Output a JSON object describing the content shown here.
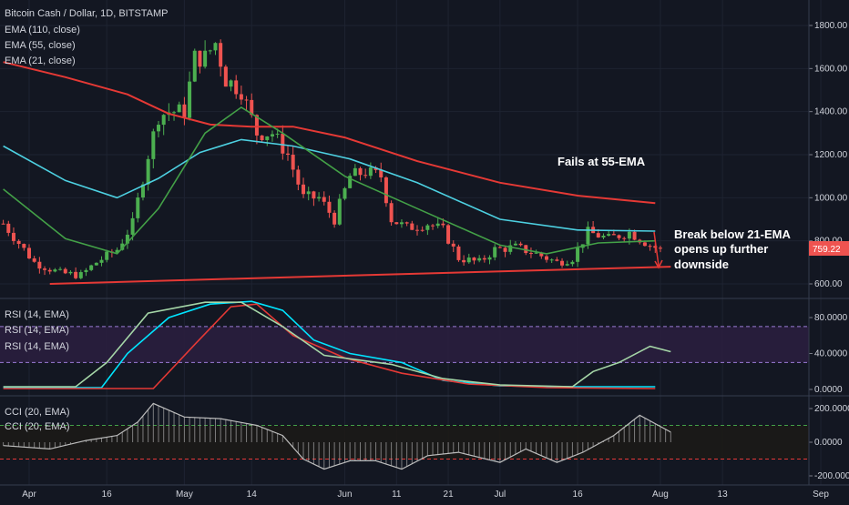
{
  "header": {
    "title": "Bitcoin Cash / Dollar, 1D, BITSTAMP",
    "ema_legends": [
      "EMA (110, close)",
      "EMA (55, close)",
      "EMA (21, close)"
    ]
  },
  "price_tag": "759.22",
  "annotations": {
    "fails": "Fails at 55-EMA",
    "break_lines": [
      "Break below 21-EMA",
      "opens up further",
      "downside"
    ]
  },
  "rsi_legends": [
    "RSI (14, EMA)",
    "RSI (14, EMA)",
    "RSI (14, EMA)"
  ],
  "cci_legends": [
    "CCI (20, EMA)",
    "CCI (20, EMA)"
  ],
  "colors": {
    "background": "#131722",
    "up_candle": "#26a69a",
    "down_candle": "#ef5350",
    "up_candle_bright": "#4caf50",
    "ema110": "#e53935",
    "ema55": "#4dd0e1",
    "ema21": "#43a047",
    "trendline": "#e53935",
    "rsi_band": "#2a1e3e",
    "rsi_line1": "#00e5ff",
    "rsi_line2": "#e53935",
    "rsi_line3": "#a5d6a7",
    "cci_line": "#bdbdbd"
  },
  "chart_data": [
    {
      "type": "candlestick",
      "title": "Bitcoin Cash / Dollar, 1D, BITSTAMP",
      "x_axis": {
        "type": "date",
        "range": [
          "2018-04-01",
          "2018-09-03"
        ],
        "ticks": [
          {
            "date": "2018-04-01",
            "label": "Apr"
          },
          {
            "date": "2018-04-16",
            "label": "16"
          },
          {
            "date": "2018-05-01",
            "label": "May"
          },
          {
            "date": "2018-05-14",
            "label": "14"
          },
          {
            "date": "2018-06-01",
            "label": "Jun"
          },
          {
            "date": "2018-06-11",
            "label": "11"
          },
          {
            "date": "2018-06-21",
            "label": "21"
          },
          {
            "date": "2018-07-01",
            "label": "Jul"
          },
          {
            "date": "2018-07-16",
            "label": "16"
          },
          {
            "date": "2018-08-01",
            "label": "Aug"
          },
          {
            "date": "2018-08-13",
            "label": "13"
          },
          {
            "date": "2018-09-01",
            "label": "Sep"
          }
        ]
      },
      "y_axis": {
        "range": [
          560,
          1900
        ],
        "ticks": [
          {
            "value": 600,
            "label": "600.00"
          },
          {
            "value": 800,
            "label": "800.00"
          },
          {
            "value": 1000,
            "label": "1000.00"
          },
          {
            "value": 1200,
            "label": "1200.00"
          },
          {
            "value": 1400,
            "label": "1400.00"
          },
          {
            "value": 1600,
            "label": "1600.00"
          },
          {
            "value": 1800,
            "label": "1800.00"
          }
        ]
      },
      "last_price": 759.22,
      "close_series": [
        {
          "date": "2018-03-27",
          "close": 880
        },
        {
          "date": "2018-04-02",
          "close": 700
        },
        {
          "date": "2018-04-07",
          "close": 650
        },
        {
          "date": "2018-04-11",
          "close": 640
        },
        {
          "date": "2018-04-14",
          "close": 700
        },
        {
          "date": "2018-04-18",
          "close": 760
        },
        {
          "date": "2018-04-21",
          "close": 880
        },
        {
          "date": "2018-04-24",
          "close": 1200
        },
        {
          "date": "2018-04-26",
          "close": 1380
        },
        {
          "date": "2018-04-28",
          "close": 1400
        },
        {
          "date": "2018-05-01",
          "close": 1400
        },
        {
          "date": "2018-05-03",
          "close": 1650
        },
        {
          "date": "2018-05-05",
          "close": 1650
        },
        {
          "date": "2018-05-07",
          "close": 1720
        },
        {
          "date": "2018-05-09",
          "close": 1550
        },
        {
          "date": "2018-05-12",
          "close": 1500
        },
        {
          "date": "2018-05-15",
          "close": 1300
        },
        {
          "date": "2018-05-18",
          "close": 1300
        },
        {
          "date": "2018-05-21",
          "close": 1200
        },
        {
          "date": "2018-05-24",
          "close": 1000
        },
        {
          "date": "2018-05-27",
          "close": 1000
        },
        {
          "date": "2018-05-30",
          "close": 900
        },
        {
          "date": "2018-06-02",
          "close": 1100
        },
        {
          "date": "2018-06-05",
          "close": 1120
        },
        {
          "date": "2018-06-08",
          "close": 1100
        },
        {
          "date": "2018-06-10",
          "close": 900
        },
        {
          "date": "2018-06-13",
          "close": 860
        },
        {
          "date": "2018-06-17",
          "close": 880
        },
        {
          "date": "2018-06-20",
          "close": 850
        },
        {
          "date": "2018-06-23",
          "close": 720
        },
        {
          "date": "2018-06-27",
          "close": 700
        },
        {
          "date": "2018-06-30",
          "close": 760
        },
        {
          "date": "2018-07-04",
          "close": 770
        },
        {
          "date": "2018-07-08",
          "close": 740
        },
        {
          "date": "2018-07-12",
          "close": 700
        },
        {
          "date": "2018-07-15",
          "close": 720
        },
        {
          "date": "2018-07-18",
          "close": 840
        },
        {
          "date": "2018-07-22",
          "close": 810
        },
        {
          "date": "2018-07-26",
          "close": 840
        },
        {
          "date": "2018-07-30",
          "close": 780
        },
        {
          "date": "2018-08-01",
          "close": 759.22
        }
      ],
      "series": [
        {
          "name": "EMA (110, close)",
          "points": [
            [
              "2018-03-27",
              1630
            ],
            [
              "2018-04-08",
              1560
            ],
            [
              "2018-04-20",
              1480
            ],
            [
              "2018-04-28",
              1390
            ],
            [
              "2018-05-06",
              1340
            ],
            [
              "2018-05-14",
              1330
            ],
            [
              "2018-05-22",
              1330
            ],
            [
              "2018-06-01",
              1280
            ],
            [
              "2018-06-15",
              1170
            ],
            [
              "2018-07-01",
              1070
            ],
            [
              "2018-07-16",
              1010
            ],
            [
              "2018-07-31",
              975
            ]
          ]
        },
        {
          "name": "EMA (55, close)",
          "points": [
            [
              "2018-03-27",
              1240
            ],
            [
              "2018-04-08",
              1080
            ],
            [
              "2018-04-18",
              1000
            ],
            [
              "2018-04-26",
              1090
            ],
            [
              "2018-05-04",
              1210
            ],
            [
              "2018-05-12",
              1270
            ],
            [
              "2018-05-22",
              1240
            ],
            [
              "2018-06-02",
              1180
            ],
            [
              "2018-06-15",
              1070
            ],
            [
              "2018-07-01",
              900
            ],
            [
              "2018-07-16",
              850
            ],
            [
              "2018-07-31",
              845
            ]
          ]
        },
        {
          "name": "EMA (21, close)",
          "points": [
            [
              "2018-03-27",
              1040
            ],
            [
              "2018-04-08",
              810
            ],
            [
              "2018-04-18",
              740
            ],
            [
              "2018-04-26",
              950
            ],
            [
              "2018-05-05",
              1300
            ],
            [
              "2018-05-12",
              1420
            ],
            [
              "2018-05-20",
              1300
            ],
            [
              "2018-06-01",
              1100
            ],
            [
              "2018-06-15",
              950
            ],
            [
              "2018-07-01",
              780
            ],
            [
              "2018-07-10",
              740
            ],
            [
              "2018-07-20",
              790
            ],
            [
              "2018-07-31",
              800
            ]
          ]
        }
      ],
      "trendline": [
        [
          "2018-04-05",
          600
        ],
        [
          "2018-08-03",
          680
        ]
      ]
    },
    {
      "type": "line",
      "title": "RSI (14, EMA)",
      "y_axis": {
        "range": [
          0,
          100
        ],
        "ticks": [
          {
            "value": 0,
            "label": "0.0000"
          },
          {
            "value": 40,
            "label": "40.0000"
          },
          {
            "value": 80,
            "label": "80.0000"
          }
        ]
      },
      "bands": [
        30,
        70
      ],
      "series": [
        {
          "name": "RSI (14, EMA)",
          "points": [
            [
              "2018-03-27",
              2
            ],
            [
              "2018-04-15",
              2
            ],
            [
              "2018-04-20",
              40
            ],
            [
              "2018-04-28",
              80
            ],
            [
              "2018-05-06",
              95
            ],
            [
              "2018-05-14",
              98
            ],
            [
              "2018-05-20",
              88
            ],
            [
              "2018-05-26",
              55
            ],
            [
              "2018-06-02",
              40
            ],
            [
              "2018-06-12",
              30
            ],
            [
              "2018-06-20",
              10
            ],
            [
              "2018-07-01",
              4
            ],
            [
              "2018-07-15",
              3
            ],
            [
              "2018-07-31",
              3
            ]
          ]
        },
        {
          "name": "RSI (14, EMA)",
          "points": [
            [
              "2018-03-27",
              1
            ],
            [
              "2018-04-25",
              1
            ],
            [
              "2018-05-03",
              50
            ],
            [
              "2018-05-10",
              92
            ],
            [
              "2018-05-15",
              95
            ],
            [
              "2018-05-22",
              60
            ],
            [
              "2018-06-01",
              35
            ],
            [
              "2018-06-12",
              18
            ],
            [
              "2018-06-25",
              6
            ],
            [
              "2018-07-10",
              2
            ],
            [
              "2018-07-31",
              1
            ]
          ]
        },
        {
          "name": "RSI (14, EMA)",
          "points": [
            [
              "2018-03-27",
              3
            ],
            [
              "2018-04-10",
              3
            ],
            [
              "2018-04-16",
              30
            ],
            [
              "2018-04-24",
              85
            ],
            [
              "2018-05-05",
              97
            ],
            [
              "2018-05-12",
              97
            ],
            [
              "2018-05-20",
              70
            ],
            [
              "2018-05-28",
              38
            ],
            [
              "2018-06-10",
              28
            ],
            [
              "2018-06-20",
              12
            ],
            [
              "2018-07-01",
              5
            ],
            [
              "2018-07-15",
              3
            ],
            [
              "2018-07-19",
              20
            ],
            [
              "2018-07-24",
              30
            ],
            [
              "2018-07-30",
              48
            ],
            [
              "2018-08-03",
              42
            ]
          ]
        }
      ]
    },
    {
      "type": "bar",
      "title": "CCI (20, EMA)",
      "y_axis": {
        "range": [
          -250,
          250
        ],
        "ticks": [
          {
            "value": 200,
            "label": "200.0000"
          },
          {
            "value": 0,
            "label": "0.0000"
          },
          {
            "value": -200,
            "label": "-200.0000"
          }
        ]
      },
      "bands": [
        -100,
        100
      ],
      "series": [
        {
          "name": "CCI (20, EMA)",
          "points": [
            [
              "2018-03-27",
              -20
            ],
            [
              "2018-04-05",
              -40
            ],
            [
              "2018-04-12",
              10
            ],
            [
              "2018-04-18",
              40
            ],
            [
              "2018-04-22",
              120
            ],
            [
              "2018-04-25",
              230
            ],
            [
              "2018-05-01",
              150
            ],
            [
              "2018-05-08",
              140
            ],
            [
              "2018-05-15",
              100
            ],
            [
              "2018-05-20",
              40
            ],
            [
              "2018-05-24",
              -100
            ],
            [
              "2018-05-28",
              -160
            ],
            [
              "2018-06-02",
              -110
            ],
            [
              "2018-06-07",
              -110
            ],
            [
              "2018-06-12",
              -160
            ],
            [
              "2018-06-17",
              -80
            ],
            [
              "2018-06-23",
              -60
            ],
            [
              "2018-07-01",
              -120
            ],
            [
              "2018-07-06",
              -40
            ],
            [
              "2018-07-12",
              -120
            ],
            [
              "2018-07-17",
              -60
            ],
            [
              "2018-07-23",
              40
            ],
            [
              "2018-07-28",
              160
            ],
            [
              "2018-08-03",
              60
            ]
          ]
        }
      ]
    }
  ]
}
